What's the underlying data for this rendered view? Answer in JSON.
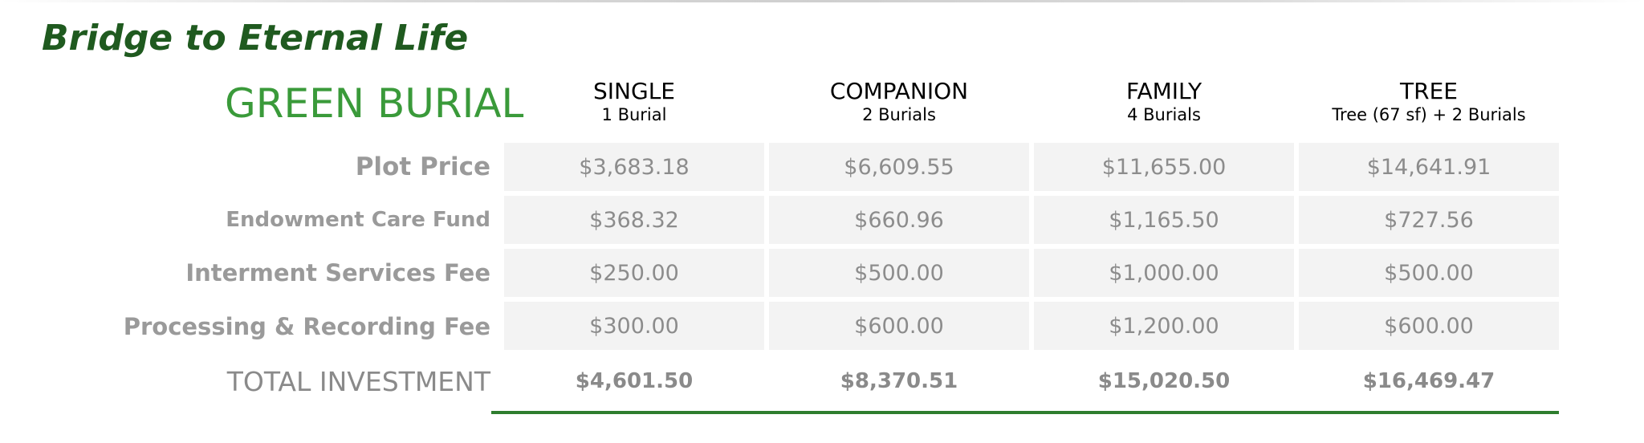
{
  "title": "Bridge to Eternal Life",
  "section": "GREEN BURIAL",
  "columns": [
    {
      "name": "SINGLE",
      "sub": "1 Burial"
    },
    {
      "name": "COMPANION",
      "sub": "2 Burials"
    },
    {
      "name": "FAMILY",
      "sub": "4 Burials"
    },
    {
      "name": "TREE",
      "sub": "Tree  (67 sf) + 2 Burials"
    }
  ],
  "rows": [
    {
      "label": "Plot Price",
      "values": [
        "$3,683.18",
        "$6,609.55",
        "$11,655.00",
        "$14,641.91"
      ]
    },
    {
      "label": "Endowment Care Fund",
      "values": [
        "$368.32",
        "$660.96",
        "$1,165.50",
        "$727.56"
      ]
    },
    {
      "label": "Interment Services Fee",
      "values": [
        "$250.00",
        "$500.00",
        "$1,000.00",
        "$500.00"
      ]
    },
    {
      "label": "Processing & Recording Fee",
      "values": [
        "$300.00",
        "$600.00",
        "$1,200.00",
        "$600.00"
      ]
    }
  ],
  "total": {
    "label": "TOTAL INVESTMENT",
    "values": [
      "$4,601.50",
      "$8,370.51",
      "$15,020.50",
      "$16,469.47"
    ]
  },
  "colors": {
    "title": "#1f5a1f",
    "section": "#3a9a3a",
    "accent_line": "#2e7d2e",
    "cell_bg": "#f3f3f3",
    "muted_text": "#8c8c8c"
  }
}
